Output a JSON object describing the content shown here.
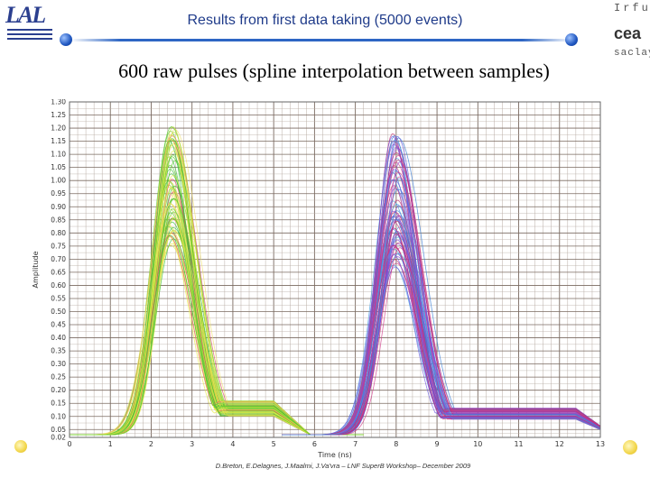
{
  "header": {
    "title": "Results from first data taking (5000 events)",
    "logo_left_text": "LAL",
    "logo_right_top": "Irfu",
    "logo_right_mid": "cea",
    "logo_right_bottom": "saclay"
  },
  "subtitle": "600 raw pulses (spline interpolation between samples)",
  "footer": "D.Breton, E.Delagnes, J.Maalmi, J.Va'vra – LNF SuperB Workshop– December 2009",
  "colors": {
    "title_blue": "#1f3b8a",
    "rule_blue": "#2e66c4",
    "grid_major": "#7a6a60",
    "grid_minor": "#b8aca4"
  },
  "chart_data": {
    "type": "line",
    "title": "",
    "xlabel": "Time (ns)",
    "ylabel": "Amplitude",
    "xlim": [
      0,
      13
    ],
    "ylim": [
      0.02,
      1.3
    ],
    "x_ticks": [
      "0",
      "1",
      "2",
      "3",
      "4",
      "5",
      "6",
      "7",
      "8",
      "9",
      "10",
      "11",
      "12",
      "13"
    ],
    "y_ticks": [
      "0.02",
      "0.05",
      "0.10",
      "0.15",
      "0.20",
      "0.25",
      "0.30",
      "0.35",
      "0.40",
      "0.45",
      "0.50",
      "0.55",
      "0.60",
      "0.65",
      "0.70",
      "0.75",
      "0.80",
      "0.85",
      "0.90",
      "0.95",
      "1.00",
      "1.05",
      "1.10",
      "1.15",
      "1.20",
      "1.25",
      "1.30"
    ],
    "grid": true,
    "pulse_groups": [
      {
        "channel": "first",
        "peak_time_ns": 2.5,
        "amplitude_range": [
          0.72,
          1.18
        ],
        "rise_start_ns": 1.3,
        "tail_level": 0.1,
        "tail_end_ns": 5.6,
        "colors": [
          "#e8e84a",
          "#c8e040",
          "#5ac82a",
          "#f2e070",
          "#e05060",
          "#3cbf3c"
        ]
      },
      {
        "channel": "second",
        "peak_time_ns": 8.0,
        "amplitude_range": [
          0.64,
          1.15
        ],
        "rise_start_ns": 6.6,
        "tail_level": 0.08,
        "tail_end_ns": 13.0,
        "colors": [
          "#d03a8a",
          "#3a7fd8",
          "#8a4ad0",
          "#c23070",
          "#4aa0e0",
          "#6a5ae0"
        ]
      }
    ],
    "curve_count": 600
  }
}
